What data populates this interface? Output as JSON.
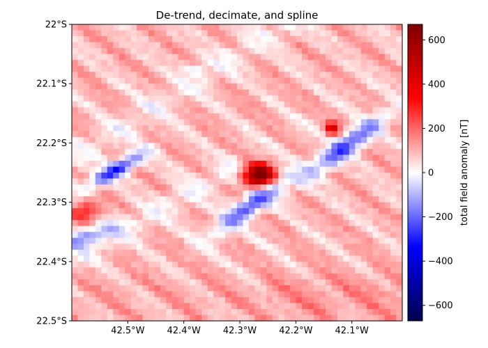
{
  "chart_data": {
    "type": "heatmap",
    "title": "De-trend, decimate, and spline",
    "colorbar_label": "total field anomaly [nT]",
    "colormap": "seismic",
    "colormap_colors": [
      "#00004c",
      "#0000ff",
      "#ffffff",
      "#ff0000",
      "#7f0000"
    ],
    "x_range_deg": [
      -42.6,
      -42.01
    ],
    "y_range_deg": [
      -22.5,
      -22.0
    ],
    "clim": [
      -670,
      670
    ],
    "x_ticks": [
      {
        "value": -42.5,
        "label": "42.5°W"
      },
      {
        "value": -42.4,
        "label": "42.4°W"
      },
      {
        "value": -42.3,
        "label": "42.3°W"
      },
      {
        "value": -42.2,
        "label": "42.2°W"
      },
      {
        "value": -42.1,
        "label": "42.1°W"
      }
    ],
    "y_ticks": [
      {
        "value": -22.0,
        "label": "22°S"
      },
      {
        "value": -22.1,
        "label": "22.1°S"
      },
      {
        "value": -22.2,
        "label": "22.2°S"
      },
      {
        "value": -22.3,
        "label": "22.3°S"
      },
      {
        "value": -22.4,
        "label": "22.4°S"
      },
      {
        "value": -22.5,
        "label": "22.5°S"
      }
    ],
    "colorbar_ticks": [
      -600,
      -400,
      -200,
      0,
      200,
      400,
      600
    ],
    "grid_resolution": [
      56,
      50
    ],
    "background_level": 90,
    "features": [
      {
        "name": "central high",
        "lon": -42.265,
        "lat": -22.255,
        "value": 660
      },
      {
        "name": "central low",
        "lon": -42.28,
        "lat": -22.305,
        "value": -330
      },
      {
        "name": "east high",
        "lon": -42.135,
        "lat": -22.175,
        "value": 360
      },
      {
        "name": "east low",
        "lon": -42.11,
        "lat": -22.205,
        "value": -330
      },
      {
        "name": "west low",
        "lon": -42.52,
        "lat": -22.245,
        "value": -380
      },
      {
        "name": "southwest low",
        "lon": -42.58,
        "lat": -22.36,
        "value": -230
      },
      {
        "name": "southwest high",
        "lon": -42.575,
        "lat": -22.315,
        "value": 230
      },
      {
        "name": "north small low",
        "lon": -42.38,
        "lat": -22.075,
        "value": -110
      }
    ]
  }
}
